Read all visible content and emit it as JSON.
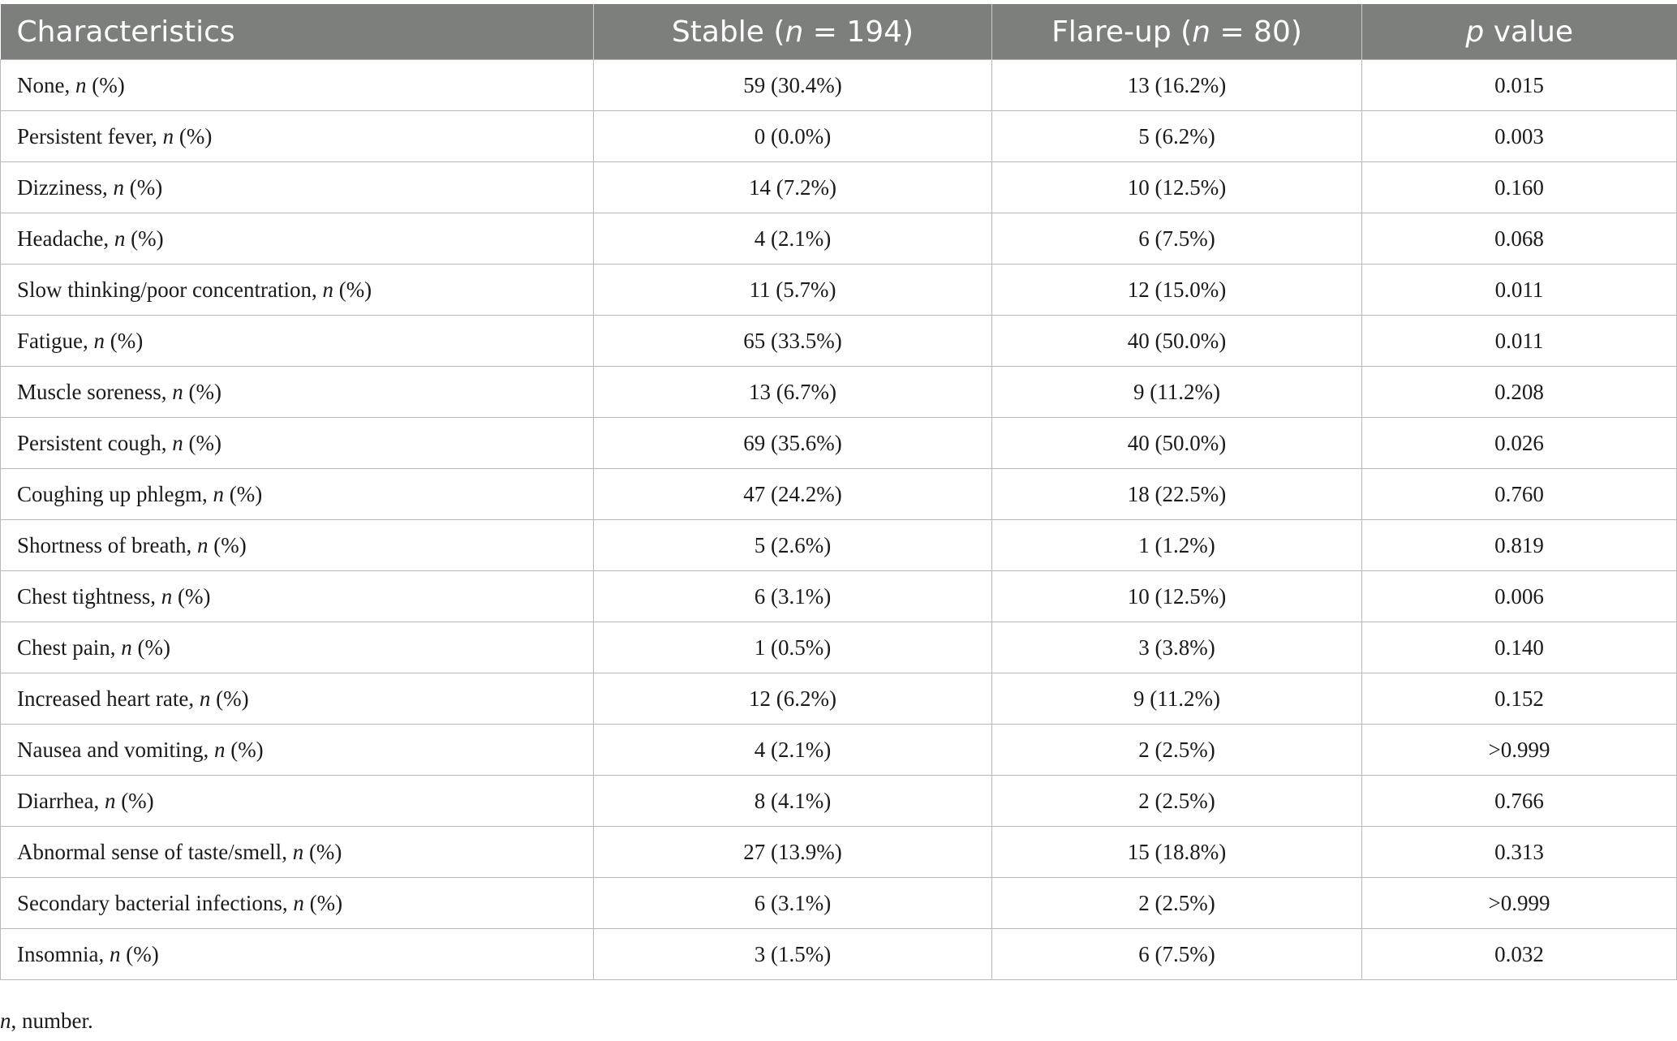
{
  "table": {
    "headers": [
      [
        "Characteristics"
      ],
      [
        "Stable (",
        "n",
        " = 194)"
      ],
      [
        "Flare-up (",
        "n",
        " = 80)"
      ],
      [
        "",
        "p",
        " value"
      ]
    ],
    "rows": [
      {
        "label": "None",
        "stable": "59 (30.4%)",
        "flare": "13 (16.2%)",
        "p": "0.015"
      },
      {
        "label": "Persistent fever",
        "stable": "0 (0.0%)",
        "flare": "5 (6.2%)",
        "p": "0.003"
      },
      {
        "label": "Dizziness",
        "stable": "14 (7.2%)",
        "flare": "10 (12.5%)",
        "p": "0.160"
      },
      {
        "label": "Headache",
        "stable": "4 (2.1%)",
        "flare": "6 (7.5%)",
        "p": "0.068"
      },
      {
        "label": "Slow thinking/poor concentration",
        "stable": "11 (5.7%)",
        "flare": "12 (15.0%)",
        "p": "0.011"
      },
      {
        "label": "Fatigue",
        "stable": "65 (33.5%)",
        "flare": "40 (50.0%)",
        "p": "0.011"
      },
      {
        "label": "Muscle soreness",
        "stable": "13 (6.7%)",
        "flare": "9 (11.2%)",
        "p": "0.208"
      },
      {
        "label": "Persistent cough",
        "stable": "69 (35.6%)",
        "flare": "40 (50.0%)",
        "p": "0.026"
      },
      {
        "label": "Coughing up phlegm",
        "stable": "47 (24.2%)",
        "flare": "18 (22.5%)",
        "p": "0.760"
      },
      {
        "label": "Shortness of breath",
        "stable": "5 (2.6%)",
        "flare": "1 (1.2%)",
        "p": "0.819"
      },
      {
        "label": "Chest tightness",
        "stable": "6 (3.1%)",
        "flare": "10 (12.5%)",
        "p": "0.006"
      },
      {
        "label": "Chest pain",
        "stable": "1 (0.5%)",
        "flare": "3 (3.8%)",
        "p": "0.140"
      },
      {
        "label": "Increased heart rate",
        "stable": "12 (6.2%)",
        "flare": "9 (11.2%)",
        "p": "0.152"
      },
      {
        "label": "Nausea and vomiting",
        "stable": "4 (2.1%)",
        "flare": "2 (2.5%)",
        "p": ">0.999"
      },
      {
        "label": "Diarrhea",
        "stable": "8 (4.1%)",
        "flare": "2 (2.5%)",
        "p": "0.766"
      },
      {
        "label": "Abnormal sense of taste/smell",
        "stable": "27 (13.9%)",
        "flare": "15 (18.8%)",
        "p": "0.313"
      },
      {
        "label": "Secondary bacterial infections",
        "stable": "6 (3.1%)",
        "flare": "2 (2.5%)",
        "p": ">0.999"
      },
      {
        "label": "Insomnia",
        "stable": "3 (1.5%)",
        "flare": "6 (7.5%)",
        "p": "0.032"
      }
    ],
    "label_suffix": [
      ", ",
      "n",
      " (%)"
    ]
  },
  "footnote": [
    "n",
    ", number."
  ],
  "colors": {
    "header_bg": "#7d7f7d",
    "header_text": "#ffffff",
    "grid": "#b8b8b8"
  }
}
